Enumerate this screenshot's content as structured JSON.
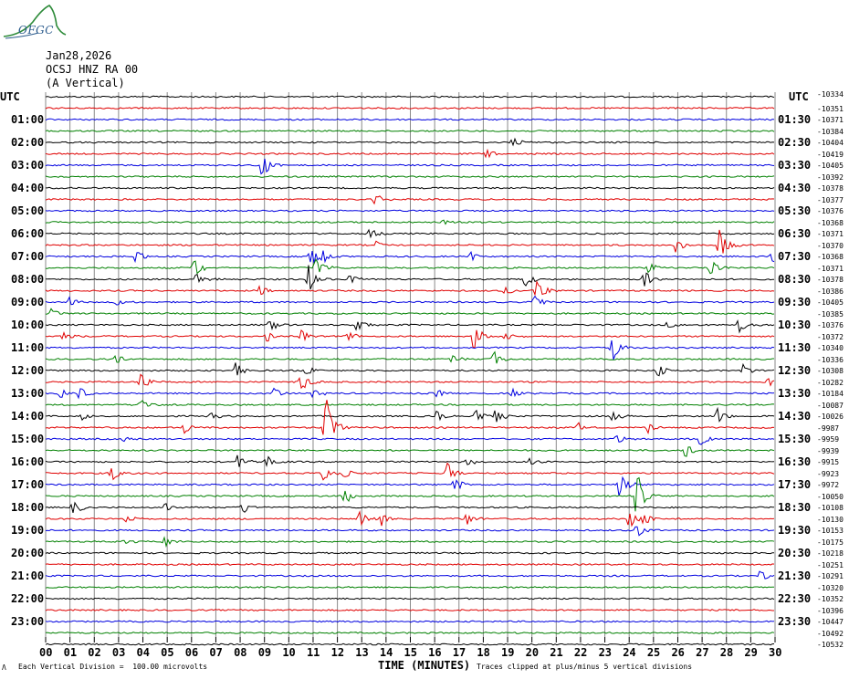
{
  "logo": {
    "text": "OFGC",
    "name": "ofgc-logo"
  },
  "header": {
    "date": "Jan28,2026",
    "station": "OCSJ HNZ RA 00",
    "component": "(A Vertical)"
  },
  "axis": {
    "utc_left": "UTC",
    "utc_right": "UTC",
    "x_title": "TIME (MINUTES)",
    "footer_left": "Each Vertical Division =  100.00 microvolts",
    "footer_right": "Traces clipped at plus/minus 5 vertical divisions",
    "footer_corner": "Λ"
  },
  "chart_data": {
    "type": "line",
    "title": "",
    "xlabel": "TIME (MINUTES)",
    "ylabel": "UTC",
    "xlim": [
      0,
      30
    ],
    "x_ticks": [
      "00",
      "01",
      "02",
      "03",
      "04",
      "05",
      "06",
      "07",
      "08",
      "09",
      "10",
      "11",
      "12",
      "13",
      "14",
      "15",
      "16",
      "17",
      "18",
      "19",
      "20",
      "21",
      "22",
      "23",
      "24",
      "25",
      "26",
      "27",
      "28",
      "29",
      "30"
    ],
    "grid": true,
    "trace_colors": [
      "#000000",
      "#e00000",
      "#0000e0",
      "#008000"
    ],
    "left_hour_labels": [
      "01:00",
      "02:00",
      "03:00",
      "04:00",
      "05:00",
      "06:00",
      "07:00",
      "08:00",
      "09:00",
      "10:00",
      "11:00",
      "12:00",
      "13:00",
      "14:00",
      "15:00",
      "16:00",
      "17:00",
      "18:00",
      "19:00",
      "20:00",
      "21:00",
      "22:00",
      "23:00"
    ],
    "right_hour_labels": [
      "01:30",
      "02:30",
      "03:30",
      "04:30",
      "05:30",
      "06:30",
      "07:30",
      "08:30",
      "09:30",
      "10:30",
      "11:30",
      "12:30",
      "13:30",
      "14:30",
      "15:30",
      "16:30",
      "17:30",
      "18:30",
      "19:30",
      "20:30",
      "21:30",
      "22:30",
      "23:30"
    ],
    "trace_dc_offsets": [
      "-10334",
      "-10351",
      "-10371",
      "-10384",
      "-10404",
      "-10419",
      "-10405",
      "-10392",
      "-10378",
      "-10377",
      "-10376",
      "-10368",
      "-10371",
      "-10370",
      "-10368",
      "-10371",
      "-10378",
      "-10386",
      "-10405",
      "-10385",
      "-10376",
      "-10372",
      "-10340",
      "-10336",
      "-10308",
      "-10282",
      "-10184",
      "-10087",
      "-10026",
      "-9987",
      "-9959",
      "-9939",
      "-9915",
      "-9923",
      "-9972",
      "-10050",
      "-10108",
      "-10130",
      "-10153",
      "-10175",
      "-10218",
      "-10251",
      "-10291",
      "-10320",
      "-10352",
      "-10396",
      "-10447",
      "-10492",
      "-10532"
    ],
    "events": [
      {
        "trace": 4,
        "min": 19.2,
        "amp": 6
      },
      {
        "trace": 5,
        "min": 18.1,
        "amp": 6
      },
      {
        "trace": 6,
        "min": 8.9,
        "amp": 16
      },
      {
        "trace": 9,
        "min": 13.5,
        "amp": 7
      },
      {
        "trace": 11,
        "min": 16.3,
        "amp": 4
      },
      {
        "trace": 12,
        "min": 13.3,
        "amp": 8
      },
      {
        "trace": 13,
        "min": 13.6,
        "amp": 7
      },
      {
        "trace": 13,
        "min": 25.9,
        "amp": 8
      },
      {
        "trace": 13,
        "min": 27.7,
        "amp": 22
      },
      {
        "trace": 14,
        "min": 3.7,
        "amp": 10
      },
      {
        "trace": 14,
        "min": 10.9,
        "amp": 14
      },
      {
        "trace": 14,
        "min": 11.4,
        "amp": 8
      },
      {
        "trace": 14,
        "min": 17.5,
        "amp": 5
      },
      {
        "trace": 14,
        "min": 29.9,
        "amp": 8
      },
      {
        "trace": 15,
        "min": 6.1,
        "amp": 12
      },
      {
        "trace": 15,
        "min": 11.1,
        "amp": 14
      },
      {
        "trace": 15,
        "min": 24.8,
        "amp": 8
      },
      {
        "trace": 15,
        "min": 27.3,
        "amp": 10
      },
      {
        "trace": 16,
        "min": 6.2,
        "amp": 10
      },
      {
        "trace": 16,
        "min": 10.8,
        "amp": 16
      },
      {
        "trace": 16,
        "min": 12.5,
        "amp": 7
      },
      {
        "trace": 16,
        "min": 19.7,
        "amp": 10
      },
      {
        "trace": 16,
        "min": 24.6,
        "amp": 10
      },
      {
        "trace": 17,
        "min": 8.8,
        "amp": 6
      },
      {
        "trace": 17,
        "min": 18.9,
        "amp": 6
      },
      {
        "trace": 17,
        "min": 20.2,
        "amp": 12
      },
      {
        "trace": 18,
        "min": 1.0,
        "amp": 6
      },
      {
        "trace": 18,
        "min": 2.9,
        "amp": 5
      },
      {
        "trace": 18,
        "min": 20.1,
        "amp": 8
      },
      {
        "trace": 19,
        "min": 0.2,
        "amp": 6
      },
      {
        "trace": 20,
        "min": 9.2,
        "amp": 8
      },
      {
        "trace": 20,
        "min": 12.8,
        "amp": 8
      },
      {
        "trace": 20,
        "min": 25.6,
        "amp": 5
      },
      {
        "trace": 20,
        "min": 28.5,
        "amp": 10
      },
      {
        "trace": 21,
        "min": 0.7,
        "amp": 5
      },
      {
        "trace": 21,
        "min": 9.1,
        "amp": 6
      },
      {
        "trace": 21,
        "min": 10.5,
        "amp": 8
      },
      {
        "trace": 21,
        "min": 12.4,
        "amp": 6
      },
      {
        "trace": 21,
        "min": 17.6,
        "amp": 18
      },
      {
        "trace": 21,
        "min": 18.9,
        "amp": 6
      },
      {
        "trace": 22,
        "min": 23.3,
        "amp": 16
      },
      {
        "trace": 23,
        "min": 2.9,
        "amp": 10
      },
      {
        "trace": 23,
        "min": 16.7,
        "amp": 6
      },
      {
        "trace": 23,
        "min": 18.4,
        "amp": 10
      },
      {
        "trace": 24,
        "min": 7.8,
        "amp": 10
      },
      {
        "trace": 24,
        "min": 10.7,
        "amp": 6
      },
      {
        "trace": 24,
        "min": 25.2,
        "amp": 8
      },
      {
        "trace": 24,
        "min": 28.7,
        "amp": 8
      },
      {
        "trace": 25,
        "min": 3.9,
        "amp": 10
      },
      {
        "trace": 25,
        "min": 10.5,
        "amp": 12
      },
      {
        "trace": 25,
        "min": 29.7,
        "amp": 5
      },
      {
        "trace": 26,
        "min": 0.6,
        "amp": 6
      },
      {
        "trace": 26,
        "min": 1.4,
        "amp": 12
      },
      {
        "trace": 26,
        "min": 9.4,
        "amp": 8
      },
      {
        "trace": 26,
        "min": 11.0,
        "amp": 6
      },
      {
        "trace": 26,
        "min": 16.1,
        "amp": 6
      },
      {
        "trace": 26,
        "min": 19.2,
        "amp": 6
      },
      {
        "trace": 27,
        "min": 3.9,
        "amp": 6
      },
      {
        "trace": 28,
        "min": 1.5,
        "amp": 8
      },
      {
        "trace": 28,
        "min": 6.8,
        "amp": 5
      },
      {
        "trace": 28,
        "min": 16.1,
        "amp": 8
      },
      {
        "trace": 28,
        "min": 17.7,
        "amp": 8
      },
      {
        "trace": 28,
        "min": 18.5,
        "amp": 10
      },
      {
        "trace": 28,
        "min": 23.3,
        "amp": 8
      },
      {
        "trace": 28,
        "min": 27.6,
        "amp": 10
      },
      {
        "trace": 29,
        "min": 5.7,
        "amp": 8
      },
      {
        "trace": 29,
        "min": 11.5,
        "amp": 40
      },
      {
        "trace": 29,
        "min": 21.9,
        "amp": 6
      },
      {
        "trace": 29,
        "min": 24.8,
        "amp": 7
      },
      {
        "trace": 30,
        "min": 3.2,
        "amp": 4
      },
      {
        "trace": 30,
        "min": 23.5,
        "amp": 8
      },
      {
        "trace": 30,
        "min": 26.9,
        "amp": 8
      },
      {
        "trace": 31,
        "min": 26.3,
        "amp": 10
      },
      {
        "trace": 32,
        "min": 7.9,
        "amp": 8
      },
      {
        "trace": 32,
        "min": 9.1,
        "amp": 8
      },
      {
        "trace": 32,
        "min": 17.3,
        "amp": 5
      },
      {
        "trace": 32,
        "min": 19.9,
        "amp": 5
      },
      {
        "trace": 33,
        "min": 2.7,
        "amp": 10
      },
      {
        "trace": 33,
        "min": 11.4,
        "amp": 8
      },
      {
        "trace": 33,
        "min": 12.3,
        "amp": 6
      },
      {
        "trace": 33,
        "min": 16.5,
        "amp": 12
      },
      {
        "trace": 34,
        "min": 16.8,
        "amp": 8
      },
      {
        "trace": 34,
        "min": 23.6,
        "amp": 16
      },
      {
        "trace": 35,
        "min": 12.3,
        "amp": 12
      },
      {
        "trace": 35,
        "min": 24.3,
        "amp": 30
      },
      {
        "trace": 36,
        "min": 1.1,
        "amp": 10
      },
      {
        "trace": 36,
        "min": 4.9,
        "amp": 6
      },
      {
        "trace": 36,
        "min": 8.1,
        "amp": 8
      },
      {
        "trace": 37,
        "min": 3.3,
        "amp": 5
      },
      {
        "trace": 37,
        "min": 12.9,
        "amp": 10
      },
      {
        "trace": 37,
        "min": 13.8,
        "amp": 8
      },
      {
        "trace": 37,
        "min": 17.3,
        "amp": 10
      },
      {
        "trace": 37,
        "min": 24.0,
        "amp": 12
      },
      {
        "trace": 37,
        "min": 24.6,
        "amp": 8
      },
      {
        "trace": 38,
        "min": 24.3,
        "amp": 10
      },
      {
        "trace": 39,
        "min": 3.2,
        "amp": 4
      },
      {
        "trace": 39,
        "min": 4.9,
        "amp": 8
      },
      {
        "trace": 42,
        "min": 29.4,
        "amp": 8
      }
    ]
  }
}
